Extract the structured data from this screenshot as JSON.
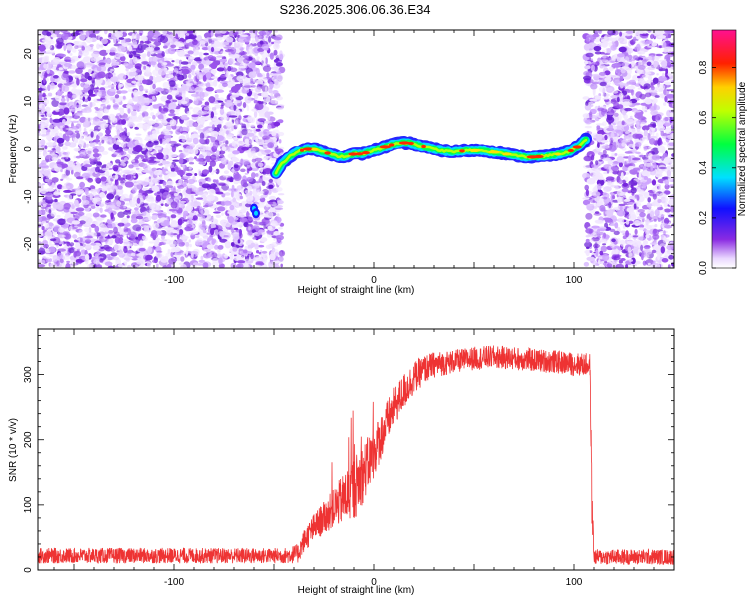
{
  "page_title": "S236.2025.306.06.36.E34",
  "chart_data": [
    {
      "type": "heatmap",
      "title": "S236.2025.306.06.36.E34",
      "xlabel": "Height of straight line (km)",
      "ylabel": "Frequency (Hz)",
      "xlim": [
        -168,
        150
      ],
      "ylim": [
        -25,
        25
      ],
      "xticks": [
        -100,
        0,
        100
      ],
      "yticks": [
        -20,
        -10,
        0,
        10,
        20
      ],
      "noise_regions": [
        [
          -168,
          -46
        ],
        [
          106,
          150
        ]
      ],
      "signal_trace": {
        "x": [
          -60,
          -58,
          -55,
          -52,
          -49,
          -46,
          -42,
          -38,
          -34,
          -30,
          -26,
          -22,
          -18,
          -14,
          -10,
          -6,
          -2,
          2,
          6,
          10,
          14,
          18,
          22,
          26,
          30,
          34,
          38,
          42,
          46,
          50,
          54,
          58,
          62,
          66,
          70,
          74,
          78,
          82,
          86,
          90,
          94,
          98,
          102,
          104,
          106
        ],
        "y": [
          -13,
          -12,
          -10,
          -7,
          -5,
          -3,
          -1.5,
          -0.5,
          0,
          0,
          -0.5,
          -1,
          -1.5,
          -1.5,
          -1,
          -1,
          -0.5,
          0,
          0.5,
          1,
          1.3,
          1.2,
          0.8,
          0.4,
          0,
          -0.3,
          -0.5,
          -0.5,
          -0.3,
          -0.3,
          -0.3,
          -0.5,
          -0.7,
          -1,
          -1.3,
          -1.5,
          -1.7,
          -1.6,
          -1.4,
          -1.2,
          -0.9,
          -0.4,
          0.5,
          1.2,
          2
        ]
      },
      "colorbar": {
        "label": "Normalized spectral amplitude",
        "range": [
          0,
          0.95
        ],
        "ticks": [
          "0.0",
          "0.2",
          "0.4",
          "0.6",
          "0.8"
        ],
        "tick_values": [
          0,
          0.2,
          0.4,
          0.6,
          0.8
        ]
      }
    },
    {
      "type": "line",
      "xlabel": "Height of straight line (km)",
      "ylabel": "SNR (10 * v/v)",
      "xlim": [
        -168,
        150
      ],
      "ylim": [
        0,
        370
      ],
      "xticks": [
        -100,
        0,
        100
      ],
      "yticks": [
        0,
        100,
        200,
        300
      ],
      "series": [
        {
          "name": "SNR",
          "color": "#ee3333",
          "x": [
            -168,
            -150,
            -120,
            -90,
            -60,
            -45,
            -38,
            -35,
            -30,
            -25,
            -20,
            -15,
            -10,
            -5,
            0,
            5,
            10,
            15,
            20,
            25,
            30,
            40,
            50,
            60,
            70,
            80,
            90,
            100,
            108,
            109,
            110,
            112,
            120,
            135,
            150
          ],
          "values": [
            22,
            22,
            22,
            22,
            22,
            22,
            25,
            45,
            65,
            80,
            95,
            110,
            125,
            150,
            180,
            215,
            250,
            275,
            295,
            308,
            315,
            320,
            325,
            327,
            325,
            322,
            320,
            316,
            315,
            100,
            20,
            20,
            20,
            20,
            20
          ],
          "noise_amplitude": [
            12,
            12,
            12,
            12,
            12,
            12,
            15,
            18,
            22,
            25,
            30,
            40,
            50,
            45,
            40,
            35,
            30,
            28,
            25,
            22,
            20,
            18,
            18,
            18,
            18,
            18,
            18,
            18,
            18,
            40,
            12,
            12,
            12,
            12,
            12
          ]
        }
      ]
    }
  ]
}
